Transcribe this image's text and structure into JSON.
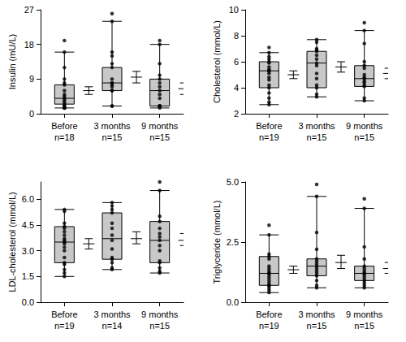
{
  "chart_data": [
    {
      "type": "boxplot",
      "y_label": "Insulin (mU/L)",
      "categories": [
        "Before",
        "3 months",
        "9 months"
      ],
      "n_labels": [
        "n=18",
        "n=15",
        "n=15"
      ],
      "ylim": [
        0,
        27
      ],
      "yticks": [
        0,
        9,
        18,
        27
      ],
      "grid": false,
      "boxes": [
        [
          1.5,
          2.5,
          4,
          7.5,
          16
        ],
        [
          2,
          6,
          8,
          12,
          24
        ],
        [
          1.5,
          2,
          6,
          9,
          18
        ]
      ],
      "points": [
        [
          19,
          16,
          12,
          9,
          8,
          7.5,
          6,
          5,
          4.5,
          4,
          3.5,
          3,
          2.5,
          2,
          2,
          1.5,
          1.5,
          1.5
        ],
        [
          26,
          24,
          16,
          15,
          13,
          12,
          9,
          8,
          8,
          7.5,
          7,
          6,
          6,
          2,
          2
        ],
        [
          19,
          18,
          13,
          10,
          9,
          8,
          7,
          6,
          5,
          4,
          2,
          2,
          2,
          2,
          1.5
        ]
      ],
      "means": [
        6,
        9.5,
        6.5
      ],
      "error_low": [
        5,
        8,
        5
      ],
      "error_high": [
        7,
        11,
        8
      ]
    },
    {
      "type": "boxplot",
      "y_label": "Cholesterol (mmol/L)",
      "categories": [
        "Before",
        "3 months",
        "9 months"
      ],
      "n_labels": [
        "n=19",
        "n=15",
        "n=15"
      ],
      "ylim": [
        2,
        10
      ],
      "yticks": [
        2,
        4,
        6,
        8,
        10
      ],
      "grid": false,
      "boxes": [
        [
          2.7,
          4.0,
          5.3,
          6.0,
          6.7
        ],
        [
          3.3,
          4.0,
          5.9,
          6.8,
          7.7
        ],
        [
          3.0,
          4.1,
          4.7,
          5.7,
          8.4
        ]
      ],
      "points": [
        [
          7.1,
          6.7,
          6.4,
          6.2,
          6.0,
          5.9,
          5.6,
          5.4,
          5.3,
          5.3,
          5.1,
          4.8,
          4.6,
          4.2,
          4.0,
          3.6,
          3.2,
          2.9,
          2.7
        ],
        [
          7.7,
          7.5,
          7.0,
          6.9,
          6.8,
          6.5,
          6.2,
          5.9,
          5.7,
          5.1,
          4.7,
          4.2,
          4.0,
          3.5,
          3.3
        ],
        [
          9.0,
          8.4,
          7.4,
          6.0,
          5.7,
          5.5,
          5.0,
          4.8,
          4.7,
          4.5,
          4.4,
          4.2,
          4.1,
          3.2,
          3.0
        ]
      ],
      "means": [
        5.0,
        5.6,
        5.1
      ],
      "error_low": [
        4.7,
        5.2,
        4.7
      ],
      "error_high": [
        5.3,
        6.0,
        5.5
      ]
    },
    {
      "type": "boxplot",
      "y_label": "LDL-cholesterol (mmol/L)",
      "categories": [
        "Before",
        "3 months",
        "9 months"
      ],
      "n_labels": [
        "n=19",
        "n=14",
        "n=15"
      ],
      "ylim": [
        0,
        7
      ],
      "yticks": [
        {
          "value": 0,
          "label": "0.0"
        },
        {
          "value": 1.5,
          "label": "1.5"
        },
        {
          "value": 3,
          "label": "3.0"
        },
        {
          "value": 4.5,
          "label": "4.5"
        },
        {
          "value": 6,
          "label": "6.0"
        }
      ],
      "grid": false,
      "boxes": [
        [
          1.5,
          2.3,
          3.5,
          4.4,
          5.4
        ],
        [
          1.9,
          2.5,
          3.7,
          5.2,
          5.8
        ],
        [
          1.7,
          2.3,
          3.6,
          4.7,
          6.5
        ]
      ],
      "points": [
        [
          5.4,
          5.3,
          4.6,
          4.4,
          4.3,
          4.1,
          3.9,
          3.7,
          3.6,
          3.5,
          3.4,
          3.2,
          3.0,
          2.6,
          2.3,
          2.2,
          1.9,
          1.7,
          1.5
        ],
        [
          5.8,
          5.6,
          5.4,
          5.2,
          4.6,
          4.3,
          3.9,
          3.6,
          3.1,
          2.6,
          2.5,
          2.3,
          2.0,
          1.9
        ],
        [
          7.0,
          6.5,
          5.0,
          4.7,
          4.3,
          4.0,
          3.8,
          3.6,
          3.3,
          3.0,
          2.4,
          2.3,
          2.0,
          1.8,
          1.7
        ]
      ],
      "means": [
        3.4,
        3.7,
        3.6
      ],
      "error_low": [
        3.1,
        3.4,
        3.3
      ],
      "error_high": [
        3.7,
        4.1,
        4.0
      ]
    },
    {
      "type": "boxplot",
      "y_label": "Triglyceride (mmol/L)",
      "categories": [
        "Before",
        "3 months",
        "9 months"
      ],
      "n_labels": [
        "n=19",
        "n=15",
        "n=15"
      ],
      "ylim": [
        0,
        5
      ],
      "yticks": [
        {
          "value": 0,
          "label": "0.0"
        },
        {
          "value": 2.5,
          "label": "2.5"
        },
        {
          "value": 5,
          "label": "5.0"
        }
      ],
      "grid": false,
      "boxes": [
        [
          0.4,
          0.7,
          1.2,
          1.9,
          2.8
        ],
        [
          0.6,
          1.1,
          1.5,
          1.8,
          4.4
        ],
        [
          0.6,
          0.9,
          1.2,
          1.5,
          3.9
        ]
      ],
      "points": [
        [
          3.2,
          2.8,
          2.0,
          1.9,
          1.8,
          1.5,
          1.4,
          1.3,
          1.2,
          1.2,
          1.1,
          1.0,
          0.9,
          0.8,
          0.7,
          0.7,
          0.6,
          0.5,
          0.4
        ],
        [
          4.9,
          4.4,
          2.9,
          2.2,
          1.8,
          1.7,
          1.6,
          1.5,
          1.4,
          1.3,
          1.2,
          1.1,
          0.9,
          0.7,
          0.6
        ],
        [
          4.3,
          3.9,
          2.3,
          1.8,
          1.5,
          1.4,
          1.3,
          1.2,
          1.2,
          1.1,
          1.0,
          0.9,
          0.8,
          0.7,
          0.6
        ]
      ],
      "means": [
        1.35,
        1.65,
        1.4
      ],
      "error_low": [
        1.2,
        1.4,
        1.2
      ],
      "error_high": [
        1.5,
        1.95,
        1.65
      ]
    }
  ]
}
